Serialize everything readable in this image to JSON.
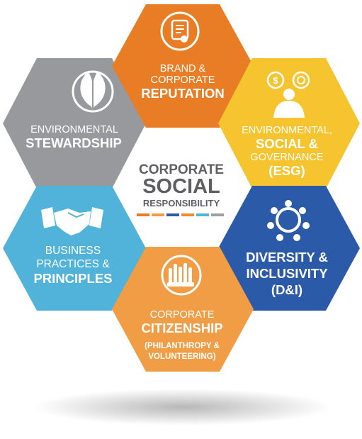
{
  "center": {
    "line1": "CORPORATE",
    "line2": "SOCIAL",
    "line3": "RESPONSIBILITY",
    "text_color": "#5f5f63",
    "stripe_colors": [
      "#e87d25",
      "#f19d45",
      "#2a5aa8",
      "#ee8a2f",
      "#51b3d9",
      "#9ba0a4"
    ]
  },
  "hexagons": {
    "brand": {
      "lines": [
        "BRAND &",
        "CORPORATE"
      ],
      "strong": "REPUTATION",
      "color": "#e87d25",
      "icon": "certificate-icon"
    },
    "esg": {
      "lines": [
        "ENVIRONMENTAL,",
        "SOCIAL &"
      ],
      "strong2": [
        "GOVERNANCE",
        "(ESG)"
      ],
      "color": "#f6c42e",
      "icon": "businessman-finance-icon"
    },
    "diversity": {
      "strong": [
        "DIVERSITY &",
        "INCLUSIVITY",
        "(D&I)"
      ],
      "color": "#2a5aa8",
      "icon": "people-circle-icon"
    },
    "citizenship": {
      "lines": [
        "CORPORATE"
      ],
      "strong": "CITIZENSHIP",
      "small": [
        "(PHILANTHROPY &",
        "VOLUNTEERING)"
      ],
      "color": "#f19d45",
      "icon": "raised-hands-icon"
    },
    "business": {
      "lines": [
        "BUSINESS",
        "PRACTICES &"
      ],
      "strong": "PRINCIPLES",
      "color": "#51b3d9",
      "icon": "handshake-icon"
    },
    "environment": {
      "lines": [
        "ENVIRONMENTAL"
      ],
      "strong": "STEWARDSHIP",
      "color": "#97999c",
      "icon": "leaves-icon"
    }
  }
}
